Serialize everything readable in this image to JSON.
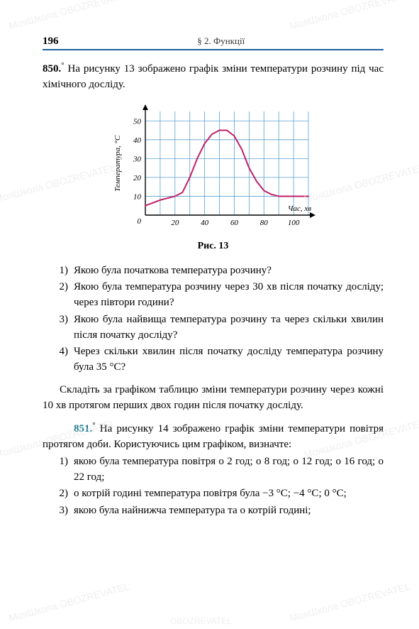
{
  "watermark_text": "OBOZREVATEL",
  "watermark_prefix": "МояШкола",
  "header": {
    "page_number": "196",
    "section": "§ 2. Функції"
  },
  "problem850": {
    "number": "850.",
    "ring": "°",
    "text": "На рисунку 13 зображено графік зміни температури розчину під час хімічного досліду."
  },
  "chart": {
    "type": "line",
    "y_label": "Температура, °С",
    "x_label": "Час, хв",
    "xlim": [
      0,
      110
    ],
    "ylim": [
      0,
      55
    ],
    "xticks": [
      20,
      40,
      60,
      80,
      100
    ],
    "yticks": [
      10,
      20,
      30,
      40,
      50
    ],
    "grid_color": "#5aa0d0",
    "grid_stroke": 0.8,
    "axis_color": "#000000",
    "curve_color": "#c0206a",
    "curve_stroke": 2,
    "background": "#ffffff",
    "font_size_labels": 11,
    "font_size_ticks": 11,
    "data": [
      [
        0,
        5
      ],
      [
        10,
        8
      ],
      [
        20,
        10
      ],
      [
        25,
        12
      ],
      [
        30,
        20
      ],
      [
        35,
        30
      ],
      [
        40,
        38
      ],
      [
        45,
        43
      ],
      [
        50,
        45
      ],
      [
        55,
        45
      ],
      [
        60,
        42
      ],
      [
        65,
        35
      ],
      [
        70,
        25
      ],
      [
        75,
        18
      ],
      [
        80,
        13
      ],
      [
        85,
        11
      ],
      [
        90,
        10
      ],
      [
        100,
        10
      ],
      [
        110,
        10
      ]
    ],
    "caption": "Рис. 13"
  },
  "questions850": [
    "Якою була початкова температура розчину?",
    "Якою була температура розчину через 30 хв після початку досліду; через півтори години?",
    "Якою була найвища температура розчину та через скільки хвилин після початку досліду?",
    "Через скільки хвилин після початку досліду температура розчину була 35 °С?"
  ],
  "instruction850": "Складіть за графіком таблицю зміни температури розчину через кожні 10 хв протягом перших двох годин після початку досліду.",
  "problem851": {
    "number": "851.",
    "ring": "°",
    "text": "На рисунку 14 зображено графік зміни температури повітря протягом доби. Користуючись цим графіком, визначте:"
  },
  "questions851": [
    "якою була температура повітря о 2 год; о 8 год; о 12 год; о 16 год; о 22 год;",
    "о котрій годині температура повітря була −3 °С; −4 °С; 0 °С;",
    "якою була найнижча температура та о котрій годині;"
  ]
}
